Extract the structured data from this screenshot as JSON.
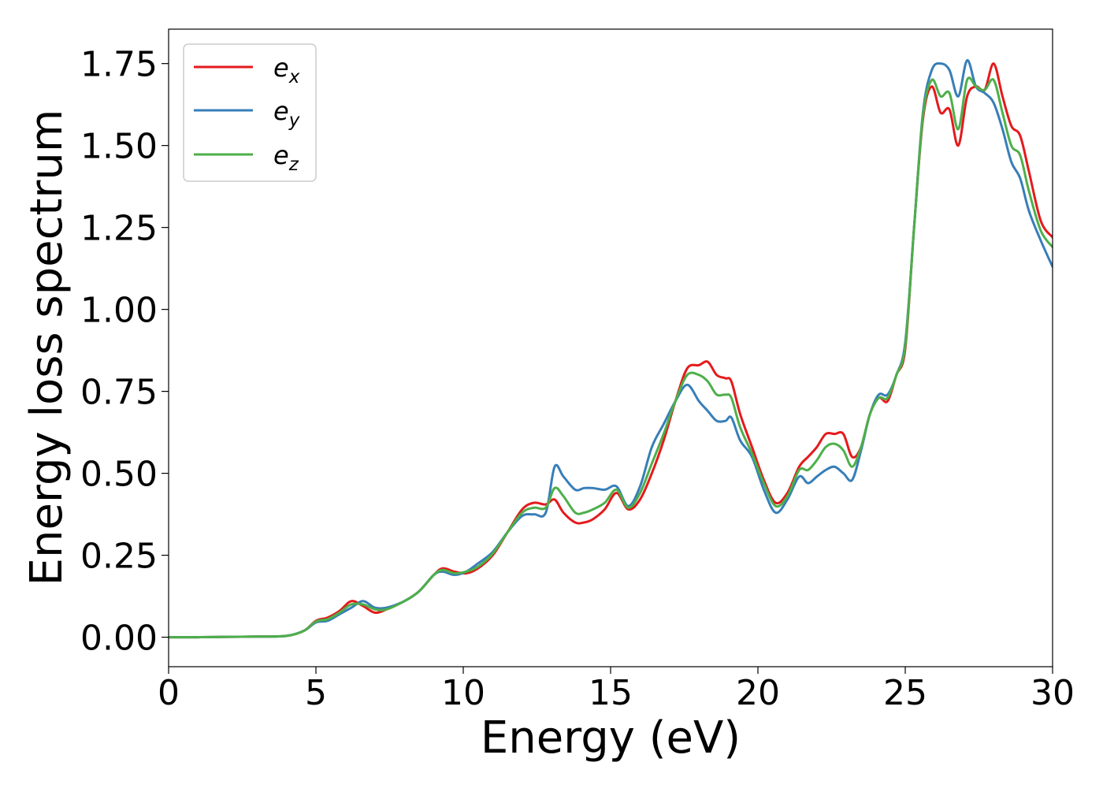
{
  "chart_data": {
    "type": "line",
    "xlabel": "Energy (eV)",
    "ylabel": "Energy loss spectrum",
    "xlim": [
      0,
      30
    ],
    "ylim": [
      -0.09,
      1.855
    ],
    "xticks": [
      0,
      5,
      10,
      15,
      20,
      25,
      30
    ],
    "xtick_labels": [
      "0",
      "5",
      "10",
      "15",
      "20",
      "25",
      "30"
    ],
    "yticks": [
      0.0,
      0.25,
      0.5,
      0.75,
      1.0,
      1.25,
      1.5,
      1.75
    ],
    "ytick_labels": [
      "0.00",
      "0.25",
      "0.50",
      "0.75",
      "1.00",
      "1.25",
      "1.50",
      "1.75"
    ],
    "grid": false,
    "legend_position": "top-left",
    "series": [
      {
        "name": "e_x",
        "legend_base": "e",
        "legend_sub": "x",
        "color": "#e41a1c",
        "x": [
          0,
          1,
          2,
          3,
          4,
          4.6,
          5.0,
          5.4,
          5.8,
          6.2,
          6.6,
          7.0,
          7.4,
          8.0,
          8.5,
          9.0,
          9.3,
          9.7,
          10.1,
          10.5,
          11.0,
          11.5,
          12.0,
          12.4,
          12.8,
          13.1,
          13.4,
          13.8,
          14.1,
          14.4,
          14.8,
          15.2,
          15.6,
          16.0,
          16.4,
          16.8,
          17.2,
          17.6,
          18.0,
          18.3,
          18.6,
          18.9,
          19.1,
          19.4,
          19.8,
          20.2,
          20.6,
          21.0,
          21.4,
          21.7,
          22.0,
          22.3,
          22.6,
          22.9,
          23.2,
          23.5,
          23.8,
          24.1,
          24.4,
          24.7,
          25.0,
          25.3,
          25.6,
          25.9,
          26.2,
          26.5,
          26.8,
          27.1,
          27.4,
          27.7,
          28.0,
          28.3,
          28.6,
          28.9,
          29.2,
          29.6,
          30.0
        ],
        "y": [
          0.0,
          0.0,
          0.001,
          0.002,
          0.004,
          0.02,
          0.05,
          0.06,
          0.08,
          0.11,
          0.095,
          0.075,
          0.085,
          0.11,
          0.14,
          0.19,
          0.21,
          0.2,
          0.195,
          0.21,
          0.25,
          0.32,
          0.39,
          0.41,
          0.405,
          0.42,
          0.38,
          0.35,
          0.35,
          0.36,
          0.39,
          0.44,
          0.39,
          0.42,
          0.5,
          0.6,
          0.72,
          0.82,
          0.83,
          0.84,
          0.8,
          0.79,
          0.78,
          0.68,
          0.58,
          0.48,
          0.41,
          0.44,
          0.52,
          0.55,
          0.58,
          0.62,
          0.62,
          0.62,
          0.55,
          0.58,
          0.68,
          0.73,
          0.72,
          0.8,
          0.88,
          1.25,
          1.58,
          1.68,
          1.6,
          1.61,
          1.5,
          1.65,
          1.68,
          1.67,
          1.75,
          1.65,
          1.56,
          1.53,
          1.42,
          1.27,
          1.22
        ]
      },
      {
        "name": "e_y",
        "legend_base": "e",
        "legend_sub": "y",
        "color": "#377eb8",
        "x": [
          0,
          1,
          2,
          3,
          4,
          4.6,
          5.0,
          5.4,
          5.8,
          6.2,
          6.6,
          7.0,
          7.4,
          8.0,
          8.5,
          9.0,
          9.3,
          9.7,
          10.1,
          10.5,
          11.0,
          11.5,
          12.0,
          12.4,
          12.8,
          13.1,
          13.4,
          13.8,
          14.1,
          14.4,
          14.8,
          15.2,
          15.6,
          16.0,
          16.4,
          16.8,
          17.2,
          17.6,
          18.0,
          18.3,
          18.6,
          18.9,
          19.1,
          19.4,
          19.8,
          20.2,
          20.6,
          21.0,
          21.4,
          21.7,
          22.0,
          22.3,
          22.6,
          22.9,
          23.2,
          23.5,
          23.8,
          24.1,
          24.4,
          24.7,
          25.0,
          25.3,
          25.6,
          25.9,
          26.2,
          26.5,
          26.8,
          27.1,
          27.4,
          27.7,
          28.0,
          28.3,
          28.6,
          28.9,
          29.2,
          29.6,
          30.0
        ],
        "y": [
          0.0,
          0.0,
          0.001,
          0.002,
          0.004,
          0.02,
          0.045,
          0.05,
          0.07,
          0.09,
          0.11,
          0.09,
          0.09,
          0.11,
          0.14,
          0.19,
          0.2,
          0.19,
          0.2,
          0.225,
          0.26,
          0.32,
          0.37,
          0.375,
          0.38,
          0.52,
          0.49,
          0.45,
          0.455,
          0.455,
          0.45,
          0.46,
          0.4,
          0.46,
          0.58,
          0.65,
          0.72,
          0.77,
          0.72,
          0.69,
          0.66,
          0.66,
          0.67,
          0.6,
          0.55,
          0.45,
          0.38,
          0.42,
          0.49,
          0.47,
          0.49,
          0.51,
          0.52,
          0.5,
          0.48,
          0.57,
          0.68,
          0.74,
          0.74,
          0.8,
          0.9,
          1.25,
          1.6,
          1.73,
          1.75,
          1.73,
          1.65,
          1.76,
          1.68,
          1.66,
          1.63,
          1.55,
          1.45,
          1.4,
          1.3,
          1.21,
          1.13
        ]
      },
      {
        "name": "e_z",
        "legend_base": "e",
        "legend_sub": "z",
        "color": "#4daf4a",
        "x": [
          0,
          1,
          2,
          3,
          4,
          4.6,
          5.0,
          5.4,
          5.8,
          6.2,
          6.6,
          7.0,
          7.4,
          8.0,
          8.5,
          9.0,
          9.3,
          9.7,
          10.1,
          10.5,
          11.0,
          11.5,
          12.0,
          12.4,
          12.8,
          13.1,
          13.4,
          13.8,
          14.1,
          14.4,
          14.8,
          15.2,
          15.6,
          16.0,
          16.4,
          16.8,
          17.2,
          17.6,
          18.0,
          18.3,
          18.6,
          18.9,
          19.1,
          19.4,
          19.8,
          20.2,
          20.6,
          21.0,
          21.4,
          21.7,
          22.0,
          22.3,
          22.6,
          22.9,
          23.2,
          23.5,
          23.8,
          24.1,
          24.4,
          24.7,
          25.0,
          25.3,
          25.6,
          25.9,
          26.2,
          26.5,
          26.8,
          27.1,
          27.4,
          27.7,
          28.0,
          28.3,
          28.6,
          28.9,
          29.2,
          29.6,
          30.0
        ],
        "y": [
          0.0,
          0.0,
          0.001,
          0.002,
          0.004,
          0.02,
          0.048,
          0.055,
          0.075,
          0.1,
          0.1,
          0.085,
          0.085,
          0.11,
          0.14,
          0.19,
          0.205,
          0.195,
          0.2,
          0.215,
          0.255,
          0.32,
          0.38,
          0.395,
          0.395,
          0.455,
          0.43,
          0.38,
          0.38,
          0.39,
          0.41,
          0.45,
          0.395,
          0.44,
          0.53,
          0.62,
          0.72,
          0.8,
          0.8,
          0.78,
          0.74,
          0.74,
          0.73,
          0.64,
          0.56,
          0.47,
          0.4,
          0.43,
          0.51,
          0.51,
          0.54,
          0.58,
          0.59,
          0.57,
          0.52,
          0.58,
          0.68,
          0.73,
          0.73,
          0.8,
          0.89,
          1.25,
          1.59,
          1.7,
          1.65,
          1.66,
          1.55,
          1.7,
          1.68,
          1.67,
          1.7,
          1.6,
          1.5,
          1.47,
          1.36,
          1.24,
          1.19
        ]
      }
    ]
  }
}
